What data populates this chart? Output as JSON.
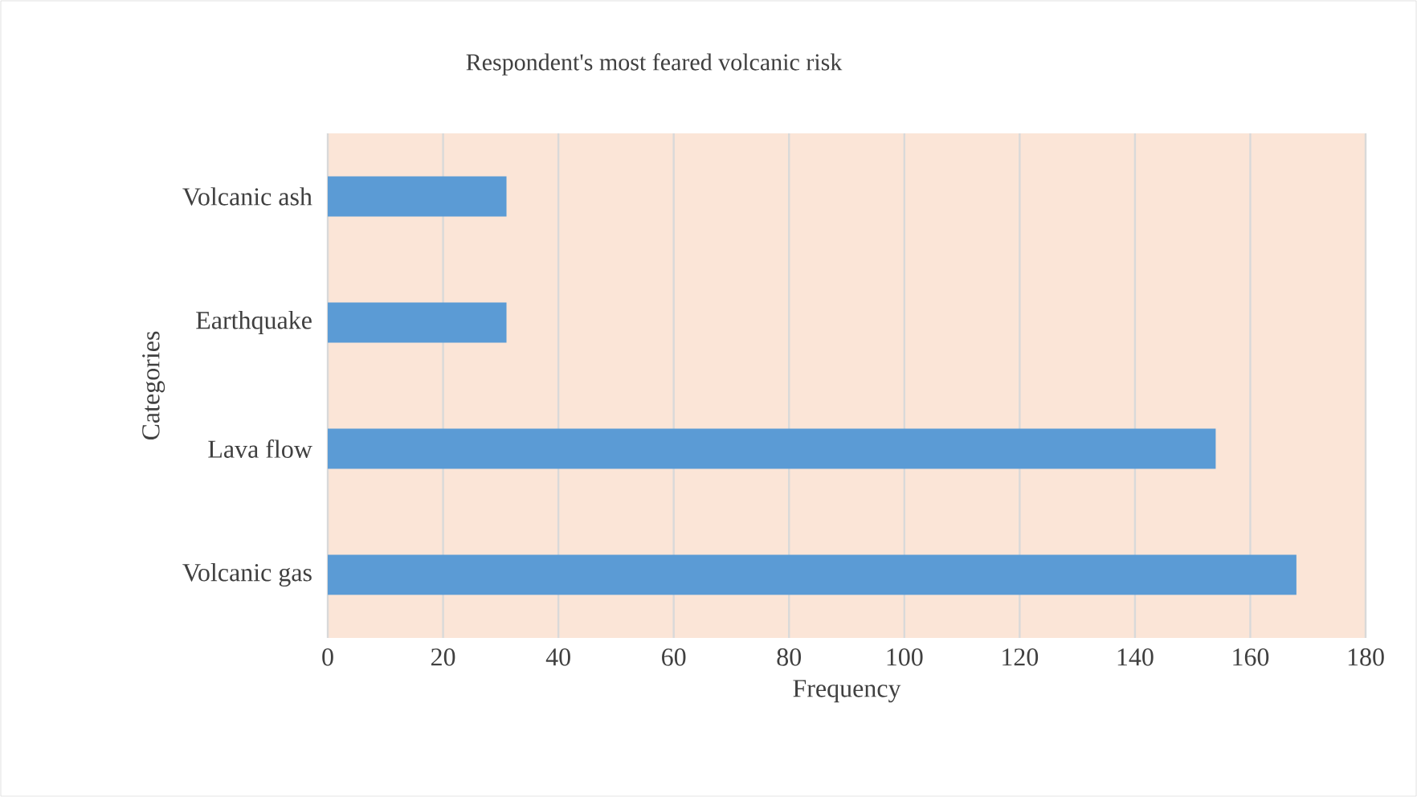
{
  "chart_data": {
    "type": "bar",
    "orientation": "horizontal",
    "title": "Respondent's most feared volcanic risk",
    "xlabel": "Frequency",
    "ylabel": "Categories",
    "categories": [
      "Volcanic ash",
      "Earthquake",
      "Lava flow",
      "Volcanic gas"
    ],
    "values": [
      31,
      31,
      154,
      168
    ],
    "color": "#5b9bd5",
    "xlim": [
      0,
      180
    ],
    "xticks": [
      0,
      20,
      40,
      60,
      80,
      100,
      120,
      140,
      160,
      180
    ],
    "grid": "x"
  }
}
